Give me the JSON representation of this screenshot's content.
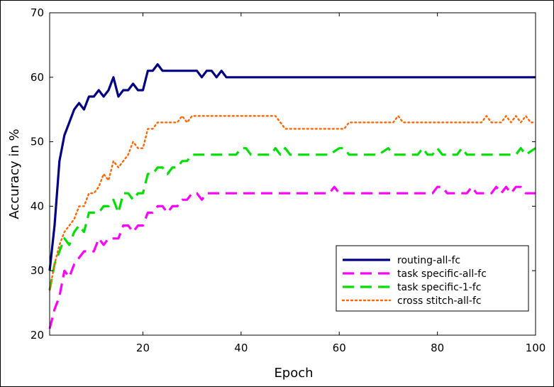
{
  "chart_data": {
    "type": "line",
    "title": "",
    "xlabel": "Epoch",
    "ylabel": "Accuracy in %",
    "xlim": [
      1,
      100
    ],
    "ylim": [
      20,
      70
    ],
    "xticks": [
      20,
      40,
      60,
      80,
      100
    ],
    "yticks": [
      20,
      30,
      40,
      50,
      60,
      70
    ],
    "grid": false,
    "legend_position": "lower-right",
    "series": [
      {
        "name": "routing-all-fc",
        "color": "#000080",
        "style": "solid",
        "points": [
          [
            1,
            30
          ],
          [
            2,
            37
          ],
          [
            3,
            47
          ],
          [
            4,
            51
          ],
          [
            5,
            53
          ],
          [
            6,
            55
          ],
          [
            7,
            56
          ],
          [
            8,
            55
          ],
          [
            9,
            57
          ],
          [
            10,
            57
          ],
          [
            11,
            58
          ],
          [
            12,
            57
          ],
          [
            13,
            58
          ],
          [
            14,
            60
          ],
          [
            15,
            57
          ],
          [
            16,
            58
          ],
          [
            17,
            58
          ],
          [
            18,
            59
          ],
          [
            19,
            58
          ],
          [
            20,
            58
          ],
          [
            21,
            61
          ],
          [
            22,
            61
          ],
          [
            23,
            62
          ],
          [
            24,
            61
          ],
          [
            25,
            61
          ],
          [
            26,
            61
          ],
          [
            27,
            61
          ],
          [
            28,
            61
          ],
          [
            29,
            61
          ],
          [
            30,
            61
          ],
          [
            31,
            61
          ],
          [
            32,
            60
          ],
          [
            33,
            61
          ],
          [
            34,
            61
          ],
          [
            35,
            60
          ],
          [
            36,
            61
          ],
          [
            37,
            60
          ],
          [
            38,
            60
          ],
          [
            40,
            60
          ],
          [
            50,
            60
          ],
          [
            60,
            60
          ],
          [
            70,
            60
          ],
          [
            80,
            60
          ],
          [
            90,
            60
          ],
          [
            100,
            60
          ]
        ]
      },
      {
        "name": "task specific-all-fc",
        "color": "#ff00ff",
        "style": "dashed",
        "points": [
          [
            1,
            21
          ],
          [
            2,
            24
          ],
          [
            3,
            26
          ],
          [
            4,
            30
          ],
          [
            5,
            29
          ],
          [
            6,
            31
          ],
          [
            7,
            32
          ],
          [
            8,
            33
          ],
          [
            9,
            33
          ],
          [
            10,
            33
          ],
          [
            11,
            35
          ],
          [
            12,
            34
          ],
          [
            13,
            35
          ],
          [
            14,
            35
          ],
          [
            15,
            35
          ],
          [
            16,
            37
          ],
          [
            17,
            37
          ],
          [
            18,
            36
          ],
          [
            19,
            37
          ],
          [
            20,
            37
          ],
          [
            21,
            39
          ],
          [
            22,
            39
          ],
          [
            23,
            40
          ],
          [
            24,
            40
          ],
          [
            25,
            39
          ],
          [
            26,
            40
          ],
          [
            27,
            40
          ],
          [
            28,
            41
          ],
          [
            29,
            41
          ],
          [
            30,
            42
          ],
          [
            31,
            42
          ],
          [
            32,
            41
          ],
          [
            33,
            42
          ],
          [
            34,
            42
          ],
          [
            40,
            42
          ],
          [
            50,
            42
          ],
          [
            58,
            42
          ],
          [
            59,
            43
          ],
          [
            60,
            42
          ],
          [
            70,
            42
          ],
          [
            79,
            42
          ],
          [
            80,
            43
          ],
          [
            81,
            43
          ],
          [
            82,
            42
          ],
          [
            86,
            42
          ],
          [
            87,
            43
          ],
          [
            88,
            42
          ],
          [
            91,
            42
          ],
          [
            92,
            43
          ],
          [
            93,
            42
          ],
          [
            94,
            43
          ],
          [
            95,
            42
          ],
          [
            96,
            43
          ],
          [
            97,
            43
          ],
          [
            98,
            42
          ],
          [
            100,
            42
          ]
        ]
      },
      {
        "name": "task specific-1-fc",
        "color": "#00dd00",
        "style": "dashed",
        "points": [
          [
            1,
            27
          ],
          [
            2,
            31
          ],
          [
            3,
            33
          ],
          [
            4,
            35
          ],
          [
            5,
            34
          ],
          [
            6,
            36
          ],
          [
            7,
            37
          ],
          [
            8,
            36
          ],
          [
            9,
            39
          ],
          [
            10,
            39
          ],
          [
            11,
            39
          ],
          [
            12,
            40
          ],
          [
            13,
            40
          ],
          [
            14,
            41
          ],
          [
            15,
            39
          ],
          [
            16,
            42
          ],
          [
            17,
            42
          ],
          [
            18,
            41
          ],
          [
            19,
            42
          ],
          [
            20,
            42
          ],
          [
            21,
            45
          ],
          [
            22,
            45
          ],
          [
            23,
            46
          ],
          [
            24,
            46
          ],
          [
            25,
            45
          ],
          [
            26,
            46
          ],
          [
            27,
            46
          ],
          [
            28,
            47
          ],
          [
            29,
            47
          ],
          [
            30,
            48
          ],
          [
            35,
            48
          ],
          [
            39,
            48
          ],
          [
            40,
            49
          ],
          [
            41,
            49
          ],
          [
            42,
            48
          ],
          [
            46,
            48
          ],
          [
            47,
            49
          ],
          [
            48,
            48
          ],
          [
            49,
            49
          ],
          [
            50,
            48
          ],
          [
            58,
            48
          ],
          [
            60,
            49
          ],
          [
            61,
            49
          ],
          [
            62,
            48
          ],
          [
            68,
            48
          ],
          [
            70,
            49
          ],
          [
            71,
            48
          ],
          [
            76,
            48
          ],
          [
            77,
            49
          ],
          [
            78,
            48
          ],
          [
            79,
            48
          ],
          [
            80,
            49
          ],
          [
            81,
            48
          ],
          [
            84,
            48
          ],
          [
            85,
            49
          ],
          [
            86,
            48
          ],
          [
            96,
            48
          ],
          [
            97,
            49
          ],
          [
            98,
            48
          ],
          [
            100,
            49
          ]
        ]
      },
      {
        "name": "cross stitch-all-fc",
        "color": "#ff6600",
        "style": "dotted",
        "points": [
          [
            1,
            27
          ],
          [
            2,
            31
          ],
          [
            3,
            34
          ],
          [
            4,
            36
          ],
          [
            5,
            37
          ],
          [
            6,
            38
          ],
          [
            7,
            40
          ],
          [
            8,
            40
          ],
          [
            9,
            42
          ],
          [
            10,
            42
          ],
          [
            11,
            43
          ],
          [
            12,
            45
          ],
          [
            13,
            44
          ],
          [
            14,
            47
          ],
          [
            15,
            46
          ],
          [
            16,
            47
          ],
          [
            17,
            48
          ],
          [
            18,
            50
          ],
          [
            19,
            49
          ],
          [
            20,
            49
          ],
          [
            21,
            52
          ],
          [
            22,
            52
          ],
          [
            23,
            53
          ],
          [
            24,
            53
          ],
          [
            25,
            53
          ],
          [
            26,
            53
          ],
          [
            27,
            53
          ],
          [
            28,
            54
          ],
          [
            29,
            53
          ],
          [
            30,
            54
          ],
          [
            35,
            54
          ],
          [
            40,
            54
          ],
          [
            45,
            54
          ],
          [
            47,
            54
          ],
          [
            48,
            53
          ],
          [
            49,
            52
          ],
          [
            50,
            52
          ],
          [
            55,
            52
          ],
          [
            60,
            52
          ],
          [
            61,
            52
          ],
          [
            62,
            53
          ],
          [
            70,
            53
          ],
          [
            71,
            53
          ],
          [
            72,
            54
          ],
          [
            73,
            53
          ],
          [
            80,
            53
          ],
          [
            88,
            53
          ],
          [
            89,
            53
          ],
          [
            90,
            54
          ],
          [
            91,
            53
          ],
          [
            93,
            53
          ],
          [
            94,
            54
          ],
          [
            95,
            53
          ],
          [
            96,
            54
          ],
          [
            97,
            53
          ],
          [
            98,
            54
          ],
          [
            99,
            53
          ],
          [
            100,
            53
          ]
        ]
      }
    ]
  }
}
